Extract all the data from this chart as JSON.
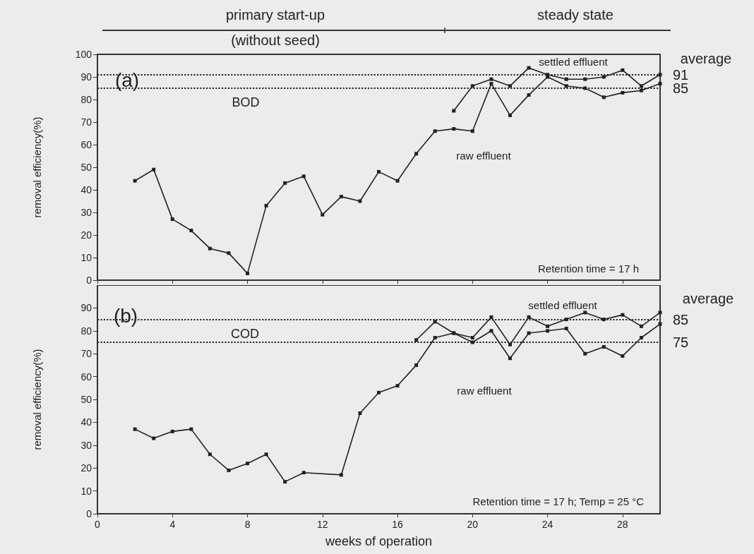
{
  "chart_data": [
    {
      "type": "line",
      "annotations": [
        "primary start-up",
        "(without seed)",
        "steady state",
        "(a)",
        "BOD",
        "average",
        "Retention time = 17 h"
      ],
      "ylabel": "removal efficiency(%)",
      "xlim": [
        0,
        30
      ],
      "xticks": [
        0,
        4,
        8,
        12,
        16,
        20,
        24,
        28
      ],
      "ylim": [
        0,
        100
      ],
      "yticks": [
        0,
        10,
        20,
        30,
        40,
        50,
        60,
        70,
        80,
        90,
        100
      ],
      "tick_labels": "y",
      "grid": false,
      "legend": false,
      "marker": "square",
      "line_style": "solid",
      "series": [
        {
          "name": "raw effluent",
          "color": "#222222",
          "x": [
            2,
            3,
            4,
            5,
            6,
            7,
            8,
            9,
            10,
            11,
            12,
            13,
            14,
            15,
            16,
            17,
            18,
            19,
            20,
            21,
            22,
            23,
            24,
            25,
            26,
            27,
            28,
            29,
            30
          ],
          "values": [
            44,
            49,
            27,
            22,
            14,
            12,
            3,
            33,
            43,
            46,
            29,
            37,
            35,
            48,
            44,
            56,
            66,
            67,
            66,
            87,
            73,
            82,
            90,
            86,
            85,
            81,
            83,
            84,
            87
          ]
        },
        {
          "name": "settled effluent",
          "color": "#222222",
          "x": [
            19,
            20,
            21,
            22,
            23,
            24,
            25,
            26,
            27,
            28,
            29,
            30
          ],
          "values": [
            75,
            86,
            89,
            86,
            94,
            91,
            89,
            89,
            90,
            93,
            86,
            91
          ]
        }
      ],
      "ref_lines": [
        {
          "axis": "y",
          "value": 91,
          "label": "91",
          "line_style": "dotted",
          "color": "#222222"
        },
        {
          "axis": "y",
          "value": 85,
          "label": "85",
          "line_style": "dotted",
          "color": "#222222"
        }
      ]
    },
    {
      "type": "line",
      "annotations": [
        "(b)",
        "COD",
        "average",
        "Retention time = 17 h; Temp = 25 °C"
      ],
      "xlabel": "weeks of operation",
      "ylabel": "removal efficiency(%)",
      "xlim": [
        0,
        30
      ],
      "xticks": [
        0,
        4,
        8,
        12,
        16,
        20,
        24,
        28
      ],
      "ylim": [
        0,
        100
      ],
      "yticks": [
        0,
        10,
        20,
        30,
        40,
        50,
        60,
        70,
        80,
        90
      ],
      "grid": false,
      "legend": false,
      "marker": "square",
      "line_style": "solid",
      "series": [
        {
          "name": "raw effluent",
          "color": "#222222",
          "x": [
            2,
            3,
            4,
            5,
            6,
            7,
            8,
            9,
            10,
            11,
            13,
            14,
            15,
            16,
            17,
            18,
            19,
            20,
            21,
            22,
            23,
            24,
            25,
            26,
            27,
            28,
            29,
            30
          ],
          "values": [
            37,
            33,
            36,
            37,
            26,
            19,
            22,
            26,
            14,
            18,
            17,
            44,
            53,
            56,
            65,
            77,
            79,
            75,
            80,
            68,
            79,
            80,
            81,
            70,
            73,
            69,
            77,
            83
          ]
        },
        {
          "name": "settled effluent",
          "color": "#222222",
          "x": [
            17,
            18,
            19,
            20,
            21,
            22,
            23,
            24,
            25,
            26,
            27,
            28,
            29,
            30
          ],
          "values": [
            76,
            84,
            79,
            77,
            86,
            74,
            86,
            82,
            85,
            88,
            85,
            87,
            82,
            88
          ]
        }
      ],
      "ref_lines": [
        {
          "axis": "y",
          "value": 85,
          "label": "85",
          "line_style": "dotted",
          "color": "#222222"
        },
        {
          "axis": "y",
          "value": 75,
          "label": "75",
          "line_style": "dotted",
          "color": "#222222"
        }
      ]
    }
  ]
}
